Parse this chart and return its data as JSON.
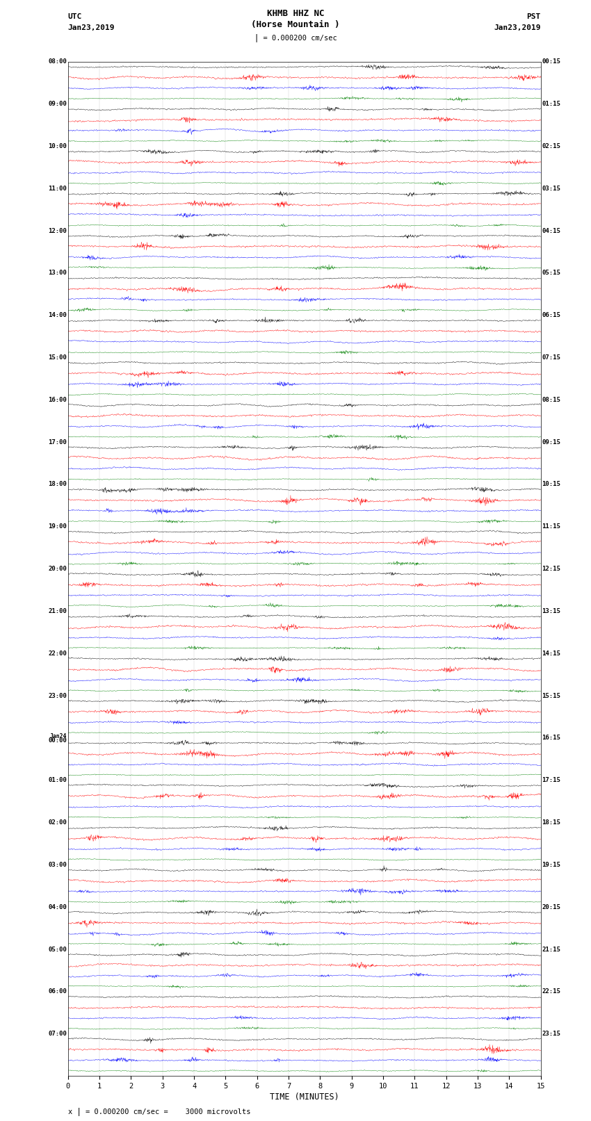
{
  "title_line1": "KHMB HHZ NC",
  "title_line2": "(Horse Mountain )",
  "scale_label": "= 0.000200 cm/sec",
  "left_header": "UTC",
  "left_date": "Jan23,2019",
  "right_header": "PST",
  "right_date": "Jan23,2019",
  "xlabel": "TIME (MINUTES)",
  "bottom_note": "= 0.000200 cm/sec =    3000 microvolts",
  "x_ticks": [
    0,
    1,
    2,
    3,
    4,
    5,
    6,
    7,
    8,
    9,
    10,
    11,
    12,
    13,
    14,
    15
  ],
  "minutes_per_row": 15,
  "traces_per_hour": 4,
  "trace_colors": [
    "black",
    "red",
    "blue",
    "green"
  ],
  "num_hours": 24,
  "fig_width": 8.5,
  "fig_height": 16.13,
  "dpi": 100,
  "bg_color": "white",
  "trace_linewidth": 0.3,
  "noise_amplitude_black": 0.09,
  "noise_amplitude_red": 0.12,
  "noise_amplitude_blue": 0.09,
  "noise_amplitude_green": 0.06,
  "hour_labels_utc": [
    "08:00",
    "09:00",
    "10:00",
    "11:00",
    "12:00",
    "13:00",
    "14:00",
    "15:00",
    "16:00",
    "17:00",
    "18:00",
    "19:00",
    "20:00",
    "21:00",
    "22:00",
    "23:00",
    "Jan24\n00:00",
    "01:00",
    "02:00",
    "03:00",
    "04:00",
    "05:00",
    "06:00",
    "07:00"
  ],
  "hour_labels_pst": [
    "00:15",
    "01:15",
    "02:15",
    "03:15",
    "04:15",
    "05:15",
    "06:15",
    "07:15",
    "08:15",
    "09:15",
    "10:15",
    "11:15",
    "12:15",
    "13:15",
    "14:15",
    "15:15",
    "16:15",
    "17:15",
    "18:15",
    "19:15",
    "20:15",
    "21:15",
    "22:15",
    "23:15"
  ]
}
